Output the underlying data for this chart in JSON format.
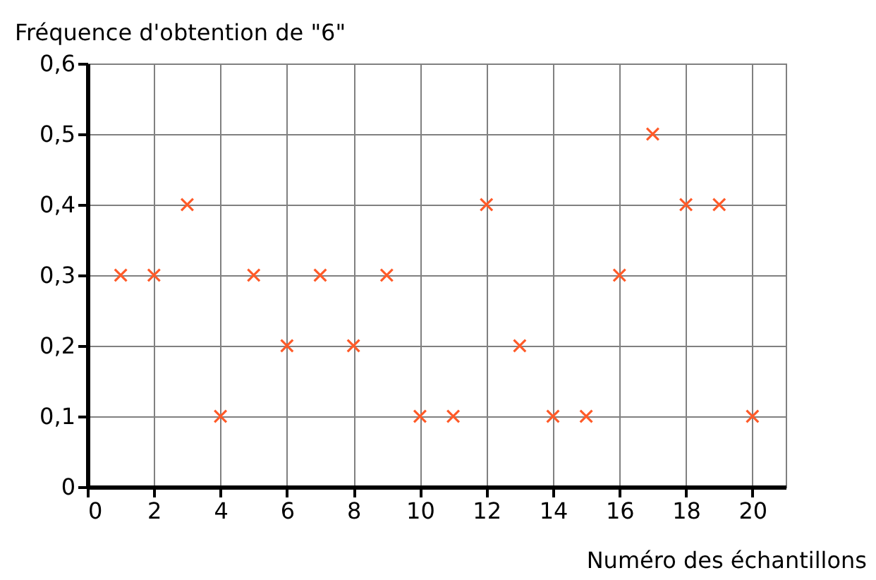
{
  "chart_data": {
    "type": "scatter",
    "ylabel": "Fréquence d'obtention de \"6\"",
    "xlabel": "Numéro des échantillons",
    "x": [
      1,
      2,
      3,
      4,
      5,
      6,
      7,
      8,
      9,
      10,
      11,
      12,
      13,
      14,
      15,
      16,
      17,
      18,
      19,
      20
    ],
    "series": [
      {
        "color": "#ff5a28",
        "values": [
          0.3,
          0.3,
          0.4,
          0.1,
          0.3,
          0.2,
          0.3,
          0.2,
          0.3,
          0.1,
          0.1,
          0.4,
          0.2,
          0.1,
          0.1,
          0.3,
          0.5,
          0.4,
          0.4,
          0.1
        ]
      }
    ],
    "xlim": [
      0,
      21
    ],
    "xticks": [
      0,
      2,
      4,
      6,
      8,
      10,
      12,
      14,
      16,
      18,
      20
    ],
    "ylim": [
      0,
      0.6
    ],
    "yticks": [
      {
        "value": 0,
        "label": "0"
      },
      {
        "value": 0.1,
        "label": "0,1"
      },
      {
        "value": 0.2,
        "label": "0,2"
      },
      {
        "value": 0.3,
        "label": "0,3"
      },
      {
        "value": 0.4,
        "label": "0,4"
      },
      {
        "value": 0.5,
        "label": "0,5"
      },
      {
        "value": 0.6,
        "label": "0,6"
      }
    ],
    "grid": true,
    "marker": "cross"
  }
}
